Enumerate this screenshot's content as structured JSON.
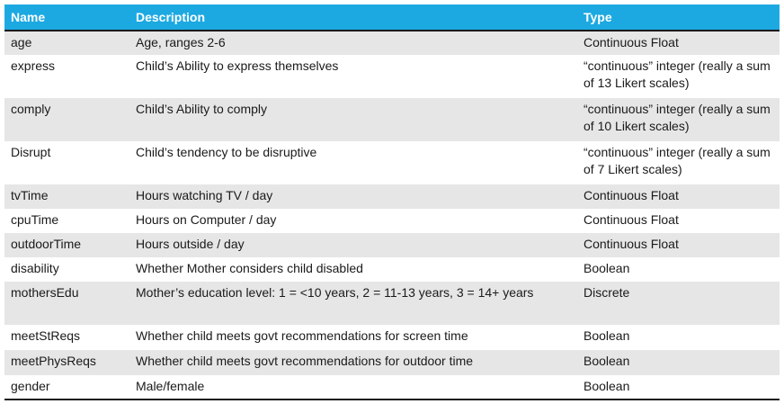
{
  "table": {
    "headers": [
      "Name",
      "Description",
      "Type"
    ],
    "rows": [
      {
        "name": "age",
        "description": "Age, ranges 2-6",
        "type": "Continuous Float"
      },
      {
        "name": "express",
        "description": "Child’s Ability to express themselves",
        "type": "“continuous” integer (really a sum of 13 Likert scales)"
      },
      {
        "name": "comply",
        "description": "Child’s Ability to comply",
        "type": "“continuous” integer (really a sum of 10 Likert scales)"
      },
      {
        "name": "Disrupt",
        "description": "Child’s tendency to be disruptive",
        "type": "“continuous” integer (really a sum of 7 Likert scales)"
      },
      {
        "name": "tvTime",
        "description": "Hours watching TV / day",
        "type": "Continuous Float"
      },
      {
        "name": "cpuTime",
        "description": "Hours on Computer / day",
        "type": "Continuous Float"
      },
      {
        "name": "outdoorTime",
        "description": "Hours outside / day",
        "type": "Continuous Float"
      },
      {
        "name": "disability",
        "description": "Whether Mother considers child disabled",
        "type": "Boolean"
      },
      {
        "name": "mothersEdu",
        "description": "Mother’s education level: 1 = <10 years, 2 = 11-13 years, 3 = 14+ years",
        "type": "Discrete"
      },
      {
        "name": "meetStReqs",
        "description": "Whether child meets govt recommendations for screen time",
        "type": "Boolean"
      },
      {
        "name": "meetPhysReqs",
        "description": "Whether child meets govt recommendations for outdoor time",
        "type": "Boolean"
      },
      {
        "name": "gender",
        "description": "Male/female",
        "type": "Boolean"
      }
    ]
  },
  "colors": {
    "header_bg": "#1ca9e1",
    "header_text": "#ffffff",
    "band_row": "#e6e6e6",
    "rule": "#1a1a1a"
  }
}
